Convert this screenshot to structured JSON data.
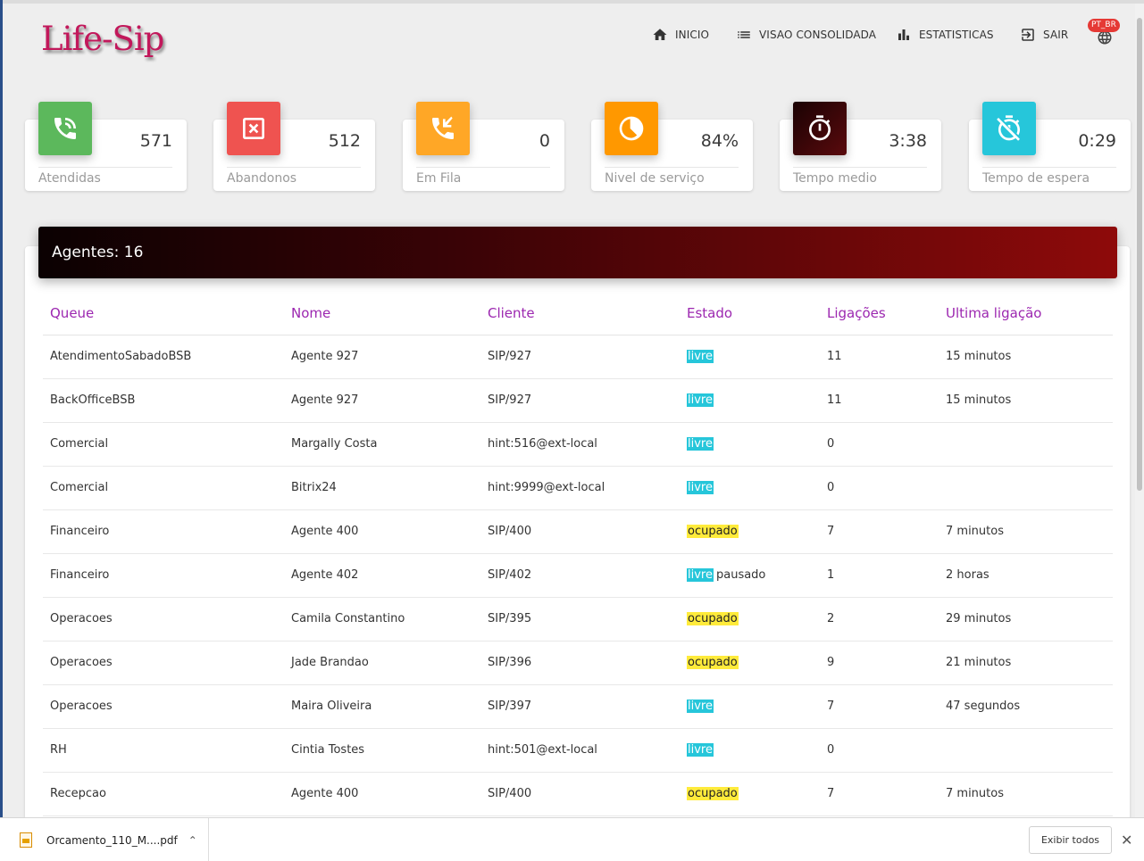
{
  "header": {
    "logo": "Life-Sip",
    "nav": [
      {
        "label": "INICIO",
        "icon": "home-icon"
      },
      {
        "label": "VISAO CONSOLIDADA",
        "icon": "list-icon"
      },
      {
        "label": "ESTATISTICAS",
        "icon": "bar-chart-icon"
      },
      {
        "label": "SAIR",
        "icon": "exit-icon"
      }
    ],
    "lang_badge": "PT_BR"
  },
  "stats": [
    {
      "label": "Atendidas",
      "value": "571",
      "icon": "phone-in-talk-icon",
      "color": "#5cb85c"
    },
    {
      "label": "Abandonos",
      "value": "512",
      "icon": "close-box-icon",
      "color": "#ef5350"
    },
    {
      "label": "Em Fila",
      "value": "0",
      "icon": "phone-incoming-icon",
      "color": "#ffa726"
    },
    {
      "label": "Nivel de serviço",
      "value": "84%",
      "icon": "pie-icon",
      "color": "#ff9800"
    },
    {
      "label": "Tempo medio",
      "value": "3:38",
      "icon": "timer-icon",
      "color": "#3a0508"
    },
    {
      "label": "Tempo de espera",
      "value": "0:29",
      "icon": "timer-off-icon",
      "color": "#26c6da"
    }
  ],
  "agents": {
    "title": "Agentes: 16",
    "columns": [
      "Queue",
      "Nome",
      "Cliente",
      "Estado",
      "Ligações",
      "Ultima ligação"
    ],
    "rows": [
      {
        "queue": "AtendimentoSabadoBSB",
        "nome": "Agente 927",
        "cliente": "SIP/927",
        "estado": "livre",
        "extra": "",
        "ligacoes": "11",
        "ultima": "15 minutos"
      },
      {
        "queue": "BackOfficeBSB",
        "nome": "Agente 927",
        "cliente": "SIP/927",
        "estado": "livre",
        "extra": "",
        "ligacoes": "11",
        "ultima": "15 minutos"
      },
      {
        "queue": "Comercial",
        "nome": "Margally Costa",
        "cliente": "hint:516@ext-local",
        "estado": "livre",
        "extra": "",
        "ligacoes": "0",
        "ultima": ""
      },
      {
        "queue": "Comercial",
        "nome": "Bitrix24",
        "cliente": "hint:9999@ext-local",
        "estado": "livre",
        "extra": "",
        "ligacoes": "0",
        "ultima": ""
      },
      {
        "queue": "Financeiro",
        "nome": "Agente 400",
        "cliente": "SIP/400",
        "estado": "ocupado",
        "extra": "",
        "ligacoes": "7",
        "ultima": "7 minutos"
      },
      {
        "queue": "Financeiro",
        "nome": "Agente 402",
        "cliente": "SIP/402",
        "estado": "livre",
        "extra": "pausado",
        "ligacoes": "1",
        "ultima": "2 horas"
      },
      {
        "queue": "Operacoes",
        "nome": "Camila Constantino",
        "cliente": "SIP/395",
        "estado": "ocupado",
        "extra": "",
        "ligacoes": "2",
        "ultima": "29 minutos"
      },
      {
        "queue": "Operacoes",
        "nome": "Jade Brandao",
        "cliente": "SIP/396",
        "estado": "ocupado",
        "extra": "",
        "ligacoes": "9",
        "ultima": "21 minutos"
      },
      {
        "queue": "Operacoes",
        "nome": "Maira Oliveira",
        "cliente": "SIP/397",
        "estado": "livre",
        "extra": "",
        "ligacoes": "7",
        "ultima": "47 segundos"
      },
      {
        "queue": "RH",
        "nome": "Cintia Tostes",
        "cliente": "hint:501@ext-local",
        "estado": "livre",
        "extra": "",
        "ligacoes": "0",
        "ultima": ""
      },
      {
        "queue": "Recepcao",
        "nome": "Agente 400",
        "cliente": "SIP/400",
        "estado": "ocupado",
        "extra": "",
        "ligacoes": "7",
        "ultima": "7 minutos"
      }
    ]
  },
  "download_bar": {
    "file_name": "Orcamento_110_M....pdf",
    "show_all": "Exibir todos"
  }
}
